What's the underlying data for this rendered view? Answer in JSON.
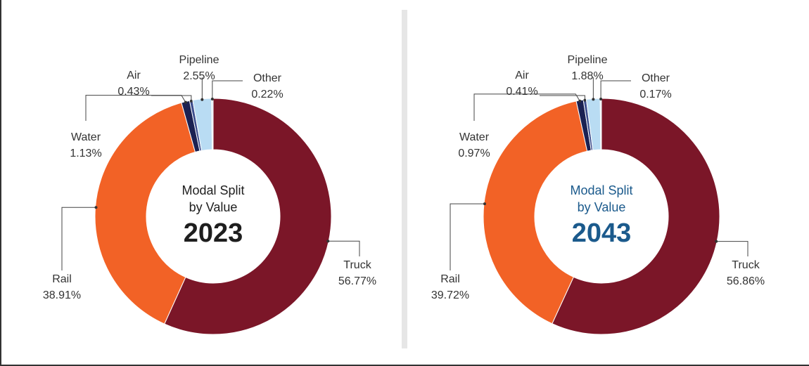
{
  "chart_data": [
    {
      "type": "donut",
      "center_text": [
        "Modal Split",
        "by Value"
      ],
      "center_year": "2023",
      "center_color": "#1e1e1e",
      "categories": [
        "Truck",
        "Rail",
        "Water",
        "Air",
        "Pipeline",
        "Other"
      ],
      "values": [
        56.77,
        38.91,
        1.13,
        0.43,
        2.55,
        0.22
      ],
      "value_labels": [
        "56.77%",
        "38.91%",
        "1.13%",
        "0.43%",
        "2.55%",
        "0.22%"
      ],
      "colors": [
        "#7b1628",
        "#f26226",
        "#1b2152",
        "#3d4f8e",
        "#b9dcf3",
        "#dce9f5"
      ]
    },
    {
      "type": "donut",
      "center_text": [
        "Modal Split",
        "by Value"
      ],
      "center_year": "2043",
      "center_color": "#1b5a8c",
      "categories": [
        "Truck",
        "Rail",
        "Water",
        "Air",
        "Pipeline",
        "Other"
      ],
      "values": [
        56.86,
        39.72,
        0.97,
        0.41,
        1.88,
        0.17
      ],
      "value_labels": [
        "56.86%",
        "39.72%",
        "0.97%",
        "0.41%",
        "1.88%",
        "0.17%"
      ],
      "colors": [
        "#7b1628",
        "#f26226",
        "#1b2152",
        "#3d4f8e",
        "#b9dcf3",
        "#dce9f5"
      ]
    }
  ]
}
